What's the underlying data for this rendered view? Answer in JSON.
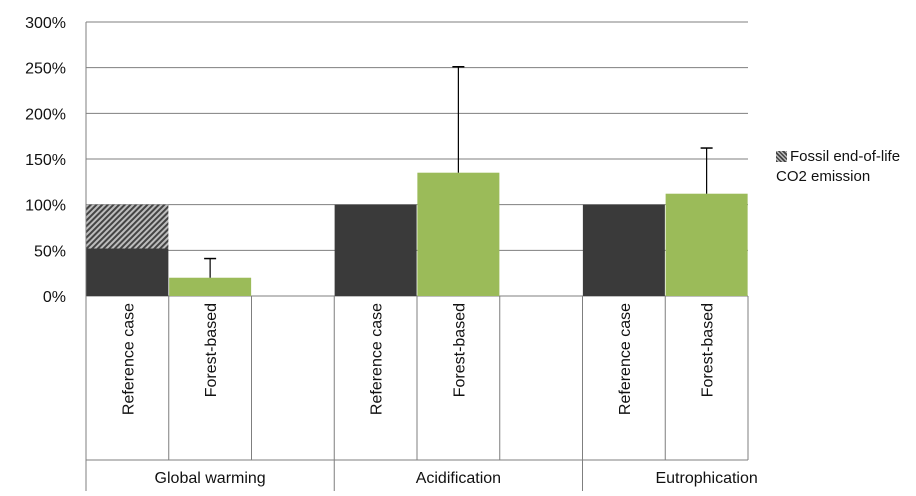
{
  "chart_data": {
    "type": "bar",
    "groups": [
      {
        "label": "Global warming",
        "items": [
          {
            "label": "Reference case",
            "value": 100,
            "base": 52,
            "hatched": 48,
            "kind": "ref"
          },
          {
            "label": "Forest-based",
            "value": 20,
            "error": 41,
            "kind": "forest"
          }
        ]
      },
      {
        "label": "Acidification",
        "items": [
          {
            "label": "Reference case",
            "value": 100,
            "kind": "ref"
          },
          {
            "label": "Forest-based",
            "value": 135,
            "error": 251,
            "kind": "forest"
          }
        ]
      },
      {
        "label": "Eutrophication",
        "items": [
          {
            "label": "Reference case",
            "value": 100,
            "kind": "ref"
          },
          {
            "label": "Forest-based",
            "value": 112,
            "error": 162,
            "kind": "forest"
          }
        ]
      }
    ],
    "y_ticks": [
      "0%",
      "50%",
      "100%",
      "150%",
      "200%",
      "250%",
      "300%"
    ],
    "ylim": [
      0,
      300
    ],
    "legend": {
      "label": "Fossil end-of-life CO2 emission",
      "position": "right"
    },
    "colors": {
      "ref": "#3a3a3a",
      "forest": "#9bbb59",
      "hatch": "#8a8a8a",
      "grid": "#7f7f7f"
    },
    "grid": true
  }
}
